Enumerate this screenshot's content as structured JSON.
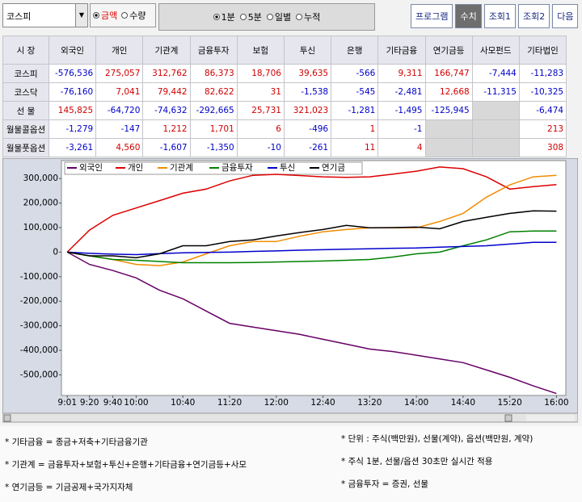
{
  "toolbar": {
    "market": "코스피",
    "unit_options": [
      "금액",
      "수량"
    ],
    "period_options": [
      "1분",
      "5분",
      "일별",
      "누적"
    ],
    "buttons": [
      "프로그램",
      "수치",
      "조회1",
      "조회2",
      "다음"
    ]
  },
  "table": {
    "headers": [
      "시 장",
      "외국인",
      "개인",
      "기관계",
      "금융투자",
      "보험",
      "투신",
      "은행",
      "기타금융",
      "연기금등",
      "사모펀드",
      "기타법인"
    ],
    "rows": [
      {
        "label": "코스피",
        "cells": [
          "-576,536",
          "275,057",
          "312,762",
          "86,373",
          "18,706",
          "39,635",
          "-566",
          "9,311",
          "166,747",
          "-7,444",
          "-11,283"
        ]
      },
      {
        "label": "코스닥",
        "cells": [
          "-76,160",
          "7,041",
          "79,442",
          "82,622",
          "31",
          "-1,538",
          "-545",
          "-2,481",
          "12,668",
          "-11,315",
          "-10,325"
        ]
      },
      {
        "label": "선 물",
        "cells": [
          "145,825",
          "-64,720",
          "-74,632",
          "-292,665",
          "25,731",
          "321,023",
          "-1,281",
          "-1,495",
          "-125,945",
          null,
          "-6,474"
        ]
      },
      {
        "label": "월물콜옵션",
        "cells": [
          "-1,279",
          "-147",
          "1,212",
          "1,701",
          "6",
          "-496",
          "1",
          "-1",
          null,
          null,
          "213"
        ]
      },
      {
        "label": "월물풋옵션",
        "cells": [
          "-3,261",
          "4,560",
          "-1,607",
          "-1,350",
          "-10",
          "-261",
          "11",
          "4",
          null,
          null,
          "308"
        ]
      }
    ]
  },
  "chart_data": {
    "type": "line",
    "x": [
      1,
      20,
      40,
      60,
      80,
      100,
      120,
      140,
      160,
      180,
      200,
      220,
      240,
      260,
      280,
      300,
      320,
      340,
      360,
      380,
      400,
      420
    ],
    "xlim": [
      -4,
      428
    ],
    "xticks": [
      {
        "value": 1,
        "label": "9:01"
      },
      {
        "value": 20,
        "label": "9:20"
      },
      {
        "value": 40,
        "label": "9:40"
      },
      {
        "value": 60,
        "label": "10:00"
      },
      {
        "value": 100,
        "label": "10:40"
      },
      {
        "value": 140,
        "label": "11:20"
      },
      {
        "value": 180,
        "label": "12:00"
      },
      {
        "value": 220,
        "label": "12:40"
      },
      {
        "value": 260,
        "label": "13:20"
      },
      {
        "value": 300,
        "label": "14:00"
      },
      {
        "value": 340,
        "label": "14:40"
      },
      {
        "value": 380,
        "label": "15:20"
      },
      {
        "value": 420,
        "label": "16:00"
      }
    ],
    "ylim": [
      -584000,
      373000
    ],
    "yticks": [
      {
        "value": -500000,
        "label": "-500,000"
      },
      {
        "value": -400000,
        "label": "-400,000"
      },
      {
        "value": -300000,
        "label": "-300,000"
      },
      {
        "value": -200000,
        "label": "-200,000"
      },
      {
        "value": -100000,
        "label": "-100,000"
      },
      0,
      {
        "value": 100000,
        "label": "100,000"
      },
      {
        "value": 200000,
        "label": "200,000"
      },
      {
        "value": 300000,
        "label": "300,000"
      }
    ],
    "grid": false,
    "legend": "top-left",
    "series": [
      {
        "name": "외국인",
        "color": "#660066",
        "values": [
          0,
          -50000,
          -75000,
          -105000,
          -155000,
          -190000,
          -240000,
          -290000,
          -305000,
          -320000,
          -335000,
          -355000,
          -375000,
          -395000,
          -405000,
          -420000,
          -435000,
          -450000,
          -480000,
          -510000,
          -545000,
          -576000
        ]
      },
      {
        "name": "개인",
        "color": "#dd0000",
        "values": [
          0,
          90000,
          150000,
          180000,
          210000,
          240000,
          257000,
          290000,
          313000,
          317000,
          312000,
          307000,
          305000,
          307000,
          318000,
          330000,
          347000,
          340000,
          307000,
          257000,
          267000,
          275000
        ]
      },
      {
        "name": "기관계",
        "color": "#f08c00",
        "values": [
          0,
          -15000,
          -30000,
          -50000,
          -55000,
          -40000,
          -7000,
          26000,
          43000,
          43000,
          65000,
          83000,
          92000,
          99000,
          99000,
          99000,
          125000,
          158000,
          224000,
          274000,
          307000,
          313000
        ]
      },
      {
        "name": "금융투자",
        "color": "#008000",
        "values": [
          0,
          -15000,
          -30000,
          -33000,
          -38000,
          -43000,
          -43000,
          -43000,
          -42000,
          -40000,
          -38000,
          -36000,
          -33000,
          -30000,
          -20000,
          -7000,
          0,
          26000,
          50000,
          83000,
          86000,
          86000
        ]
      },
      {
        "name": "투신",
        "color": "#0000cc",
        "values": [
          0,
          -5000,
          -8000,
          -10000,
          -6000,
          -3000,
          -1000,
          0,
          3000,
          5000,
          8000,
          10000,
          12000,
          14000,
          16000,
          17000,
          20000,
          23000,
          26000,
          33000,
          40000,
          40000
        ]
      },
      {
        "name": "연기금",
        "color": "#000000",
        "values": [
          0,
          -15000,
          -15000,
          -23000,
          -7000,
          26000,
          26000,
          43000,
          50000,
          66000,
          80000,
          92000,
          109000,
          99000,
          100000,
          102000,
          95000,
          125000,
          142000,
          158000,
          168000,
          167000
        ]
      }
    ]
  },
  "notes": {
    "left": [
      "* 기타금융 = 종금+저축+기타금융기관",
      "* 기관계 = 금융투자+보험+투신+은행+기타금융+연기금등+사모",
      "* 연기금등 = 기금공제+국가지자체"
    ],
    "right": [
      "* 단위 : 주식(백만원), 선물(계약), 옵션(백만원, 계약)",
      "* 주식 1분, 선물/옵션 30초만 실시간 적용",
      "* 금융투자 = 증권, 선물"
    ]
  }
}
